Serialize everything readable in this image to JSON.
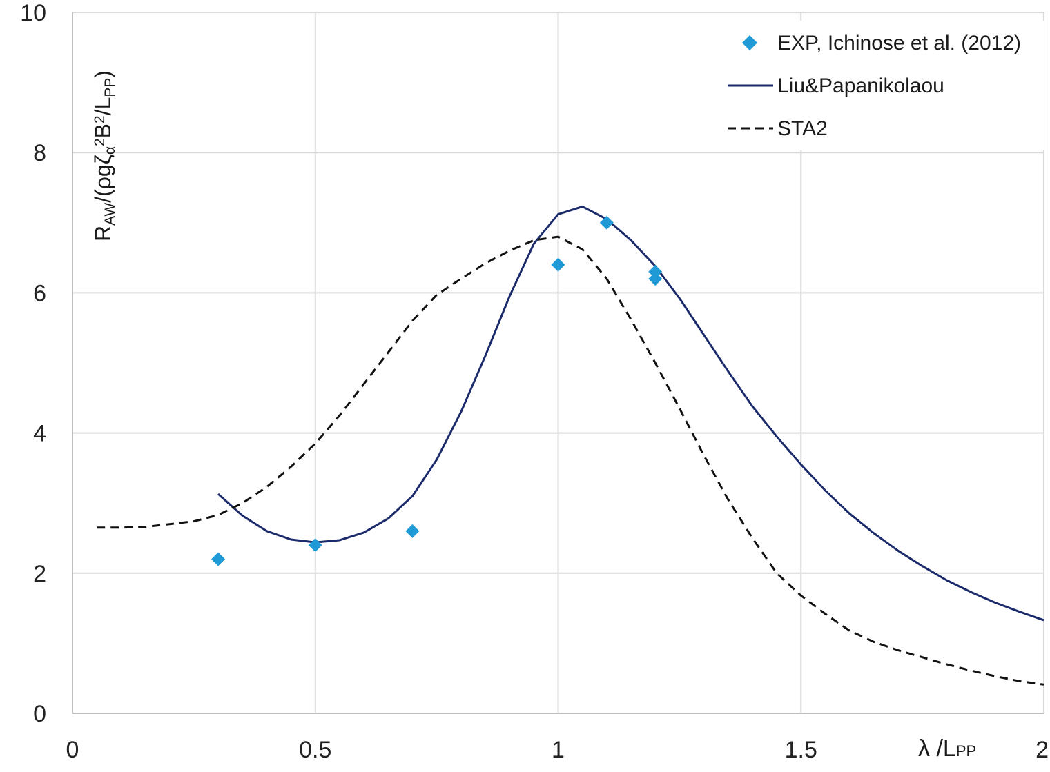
{
  "chart_data": {
    "type": "line",
    "title": "",
    "xlabel": {
      "main": "λ /L",
      "sub": "PP"
    },
    "ylabel": {
      "parts": [
        {
          "text": "R",
          "role": "base"
        },
        {
          "text": "AW",
          "role": "sub"
        },
        {
          "text": "/(ρgζ",
          "role": "base"
        },
        {
          "text": "α",
          "role": "sub"
        },
        {
          "text": "2",
          "role": "sup"
        },
        {
          "text": "B",
          "role": "base"
        },
        {
          "text": "2",
          "role": "sup"
        },
        {
          "text": "/L",
          "role": "base"
        },
        {
          "text": "PP",
          "role": "sub"
        },
        {
          "text": ")",
          "role": "base"
        }
      ]
    },
    "xlim": [
      0,
      2
    ],
    "ylim": [
      0,
      10
    ],
    "x_ticks": [
      {
        "value": 0,
        "label": "0"
      },
      {
        "value": 0.5,
        "label": "0.5"
      },
      {
        "value": 1,
        "label": "1"
      },
      {
        "value": 1.5,
        "label": "1.5"
      },
      {
        "value": 2,
        "label": "2"
      }
    ],
    "y_ticks": [
      {
        "value": 0,
        "label": "0"
      },
      {
        "value": 2,
        "label": "2"
      },
      {
        "value": 4,
        "label": "4"
      },
      {
        "value": 6,
        "label": "6"
      },
      {
        "value": 8,
        "label": "8"
      },
      {
        "value": 10,
        "label": "10"
      }
    ],
    "grid": true,
    "legend_position": "top-right",
    "series": [
      {
        "name": "EXP, Ichinose et al. (2012)",
        "type": "scatter",
        "marker": "diamond",
        "color": "#1f9ad6",
        "points": [
          [
            0.3,
            2.2
          ],
          [
            0.5,
            2.4
          ],
          [
            0.7,
            2.6
          ],
          [
            1.0,
            6.4
          ],
          [
            1.1,
            7.0
          ],
          [
            1.2,
            6.2
          ],
          [
            1.2,
            6.3
          ]
        ]
      },
      {
        "name": "Liu&Papanikolaou",
        "type": "line",
        "style": "solid",
        "color": "#1b2a6b",
        "points": [
          [
            0.3,
            3.13
          ],
          [
            0.35,
            2.82
          ],
          [
            0.4,
            2.6
          ],
          [
            0.45,
            2.48
          ],
          [
            0.5,
            2.44
          ],
          [
            0.55,
            2.47
          ],
          [
            0.6,
            2.58
          ],
          [
            0.65,
            2.78
          ],
          [
            0.7,
            3.1
          ],
          [
            0.75,
            3.62
          ],
          [
            0.8,
            4.3
          ],
          [
            0.85,
            5.1
          ],
          [
            0.9,
            5.95
          ],
          [
            0.95,
            6.7
          ],
          [
            1.0,
            7.12
          ],
          [
            1.05,
            7.23
          ],
          [
            1.1,
            7.05
          ],
          [
            1.15,
            6.75
          ],
          [
            1.2,
            6.38
          ],
          [
            1.25,
            5.92
          ],
          [
            1.3,
            5.4
          ],
          [
            1.35,
            4.88
          ],
          [
            1.4,
            4.38
          ],
          [
            1.45,
            3.95
          ],
          [
            1.5,
            3.55
          ],
          [
            1.55,
            3.18
          ],
          [
            1.6,
            2.85
          ],
          [
            1.65,
            2.57
          ],
          [
            1.7,
            2.32
          ],
          [
            1.75,
            2.1
          ],
          [
            1.8,
            1.9
          ],
          [
            1.85,
            1.73
          ],
          [
            1.9,
            1.58
          ],
          [
            1.95,
            1.45
          ],
          [
            2.0,
            1.33
          ]
        ]
      },
      {
        "name": "STA2",
        "type": "line",
        "style": "dashed",
        "color": "#111111",
        "points": [
          [
            0.05,
            2.65
          ],
          [
            0.1,
            2.65
          ],
          [
            0.15,
            2.66
          ],
          [
            0.2,
            2.7
          ],
          [
            0.25,
            2.74
          ],
          [
            0.3,
            2.83
          ],
          [
            0.35,
            3.0
          ],
          [
            0.4,
            3.23
          ],
          [
            0.45,
            3.52
          ],
          [
            0.5,
            3.85
          ],
          [
            0.55,
            4.25
          ],
          [
            0.6,
            4.7
          ],
          [
            0.65,
            5.15
          ],
          [
            0.7,
            5.6
          ],
          [
            0.75,
            5.97
          ],
          [
            0.8,
            6.2
          ],
          [
            0.85,
            6.42
          ],
          [
            0.9,
            6.6
          ],
          [
            0.95,
            6.75
          ],
          [
            1.0,
            6.8
          ],
          [
            1.05,
            6.62
          ],
          [
            1.1,
            6.2
          ],
          [
            1.15,
            5.62
          ],
          [
            1.2,
            5.0
          ],
          [
            1.25,
            4.35
          ],
          [
            1.3,
            3.68
          ],
          [
            1.35,
            3.05
          ],
          [
            1.4,
            2.5
          ],
          [
            1.45,
            2.0
          ],
          [
            1.5,
            1.68
          ],
          [
            1.55,
            1.42
          ],
          [
            1.6,
            1.18
          ],
          [
            1.65,
            1.02
          ],
          [
            1.7,
            0.9
          ],
          [
            1.75,
            0.8
          ],
          [
            1.8,
            0.7
          ],
          [
            1.85,
            0.61
          ],
          [
            1.9,
            0.53
          ],
          [
            1.95,
            0.46
          ],
          [
            2.0,
            0.41
          ]
        ]
      }
    ]
  }
}
